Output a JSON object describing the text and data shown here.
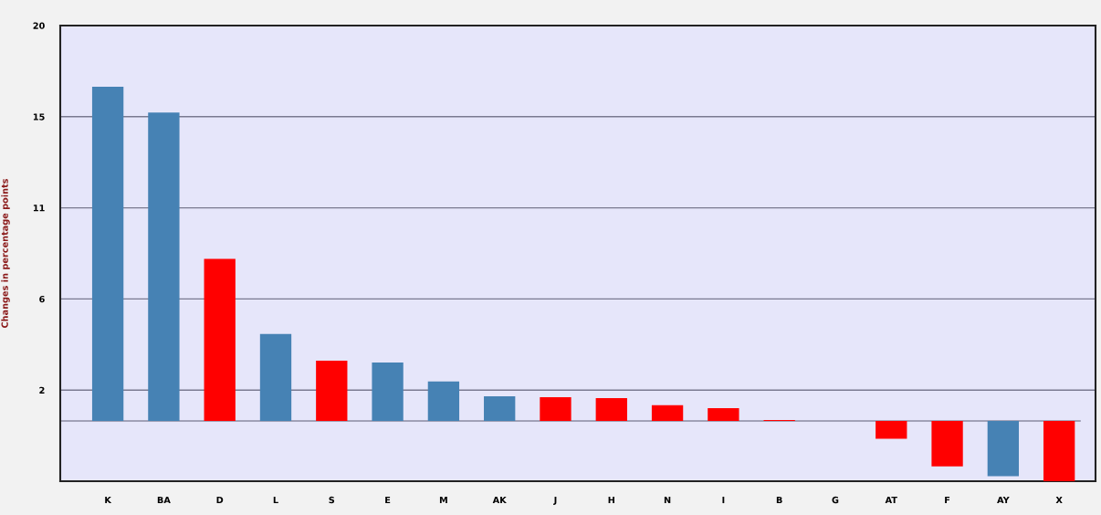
{
  "chart_data": {
    "type": "bar",
    "ylabel": "Changes in percentage points",
    "categories": [
      "K",
      "BA",
      "D",
      "L",
      "S",
      "E",
      "M",
      "AK",
      "J",
      "H",
      "N",
      "I",
      "B",
      "G",
      "AT",
      "F",
      "AY",
      "X"
    ],
    "values": [
      16.9,
      15.6,
      8.2,
      4.4,
      3.05,
      2.95,
      2.0,
      1.25,
      1.2,
      1.15,
      0.8,
      0.65,
      0.05,
      0,
      -0.9,
      -2.3,
      -2.8,
      -3.05
    ],
    "colors": [
      "#4682b4",
      "#4682b4",
      "#ff0000",
      "#4682b4",
      "#ff0000",
      "#4682b4",
      "#4682b4",
      "#4682b4",
      "#ff0000",
      "#ff0000",
      "#ff0000",
      "#ff0000",
      "#ff0000",
      "#4682b4",
      "#ff0000",
      "#ff0000",
      "#4682b4",
      "#ff0000"
    ],
    "ylim": [
      -3.05,
      20
    ],
    "yticks": [
      {
        "value": 1.56,
        "label": "2"
      },
      {
        "value": 6.17,
        "label": "6"
      },
      {
        "value": 10.78,
        "label": "11"
      },
      {
        "value": 15.39,
        "label": "15"
      },
      20
    ],
    "grid": "y",
    "ref_lines": [
      {
        "axis": "y",
        "value": 0,
        "label": null,
        "color": "#8a8aa0"
      }
    ]
  }
}
